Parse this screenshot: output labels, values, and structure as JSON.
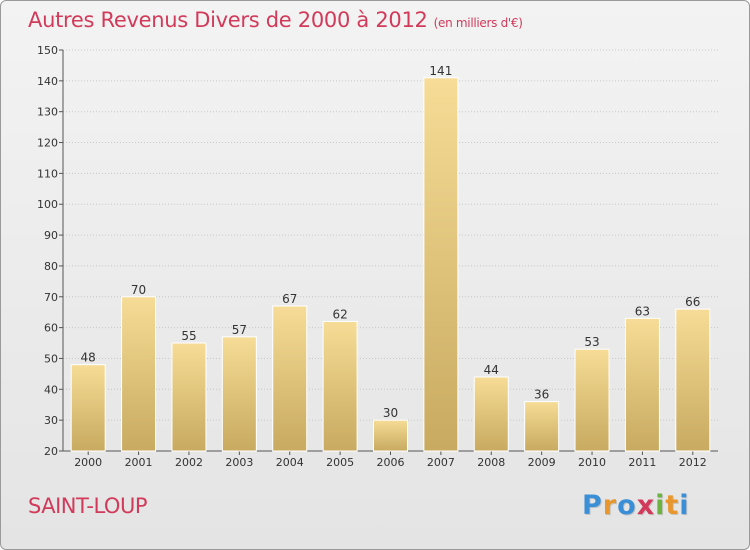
{
  "title": "Autres Revenus Divers de 2000 à 2012",
  "unit": "(en milliers d'€)",
  "town": "SAINT-LOUP",
  "logo": {
    "letters": [
      "P",
      "r",
      "o",
      "x",
      "i",
      "t",
      "i"
    ],
    "colors": [
      "#3b8fd6",
      "#e8962e",
      "#3b8fd6",
      "#d23a5a",
      "#6db33f",
      "#e8962e",
      "#3b8fd6"
    ]
  },
  "chart_data": {
    "type": "bar",
    "title": "Autres Revenus Divers de 2000 à 2012",
    "categories": [
      "2000",
      "2001",
      "2002",
      "2003",
      "2004",
      "2005",
      "2006",
      "2007",
      "2008",
      "2009",
      "2010",
      "2011",
      "2012"
    ],
    "values": [
      48,
      70,
      55,
      57,
      67,
      62,
      30,
      141,
      44,
      36,
      53,
      63,
      66
    ],
    "ylim": [
      20,
      150
    ],
    "yticks": [
      20,
      30,
      40,
      50,
      60,
      70,
      80,
      90,
      100,
      110,
      120,
      130,
      140,
      150
    ],
    "grid": true,
    "bar_color": "#e2c47a"
  }
}
